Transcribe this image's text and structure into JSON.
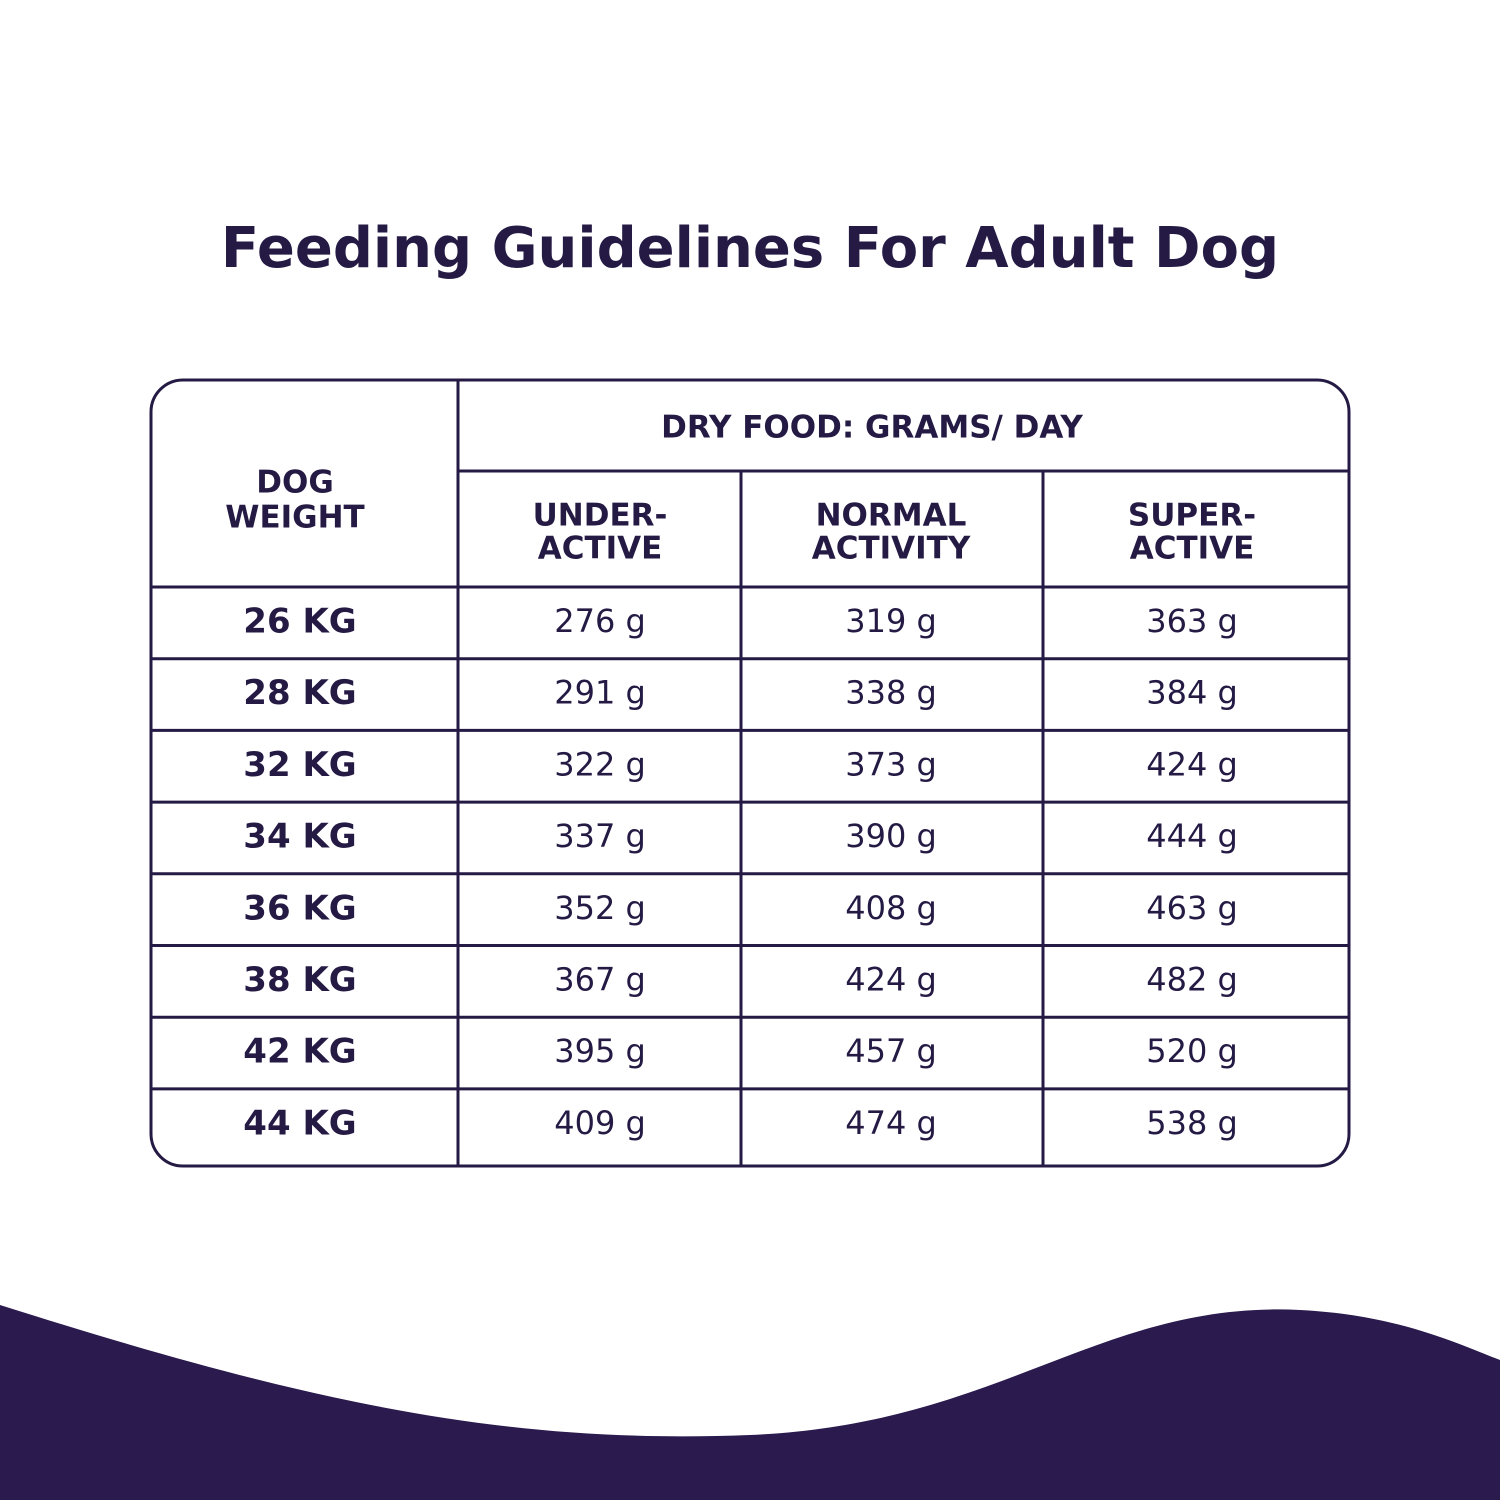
{
  "header": {
    "title": "Feeding Guidelines For Adult Dog"
  },
  "table": {
    "weight_header": [
      "DOG",
      "WEIGHT"
    ],
    "group_header": "DRY FOOD: GRAMS/ DAY",
    "columns": [
      [
        "UNDER-",
        "ACTIVE"
      ],
      [
        "NORMAL",
        "ACTIVITY"
      ],
      [
        "SUPER-",
        "ACTIVE"
      ]
    ],
    "rows": [
      [
        "26 KG",
        "276 g",
        "319 g",
        "363 g"
      ],
      [
        "28 KG",
        "291 g",
        "338 g",
        "384 g"
      ],
      [
        "32 KG",
        "322 g",
        "373 g",
        "424 g"
      ],
      [
        "34 KG",
        "337 g",
        "390 g",
        "444 g"
      ],
      [
        "36 KG",
        "352 g",
        "408 g",
        "463 g"
      ],
      [
        "38 KG",
        "367 g",
        "424 g",
        "482 g"
      ],
      [
        "42 KG",
        "395 g",
        "457 g",
        "520 g"
      ],
      [
        "44 KG",
        "409 g",
        "474 g",
        "538 g"
      ]
    ]
  }
}
